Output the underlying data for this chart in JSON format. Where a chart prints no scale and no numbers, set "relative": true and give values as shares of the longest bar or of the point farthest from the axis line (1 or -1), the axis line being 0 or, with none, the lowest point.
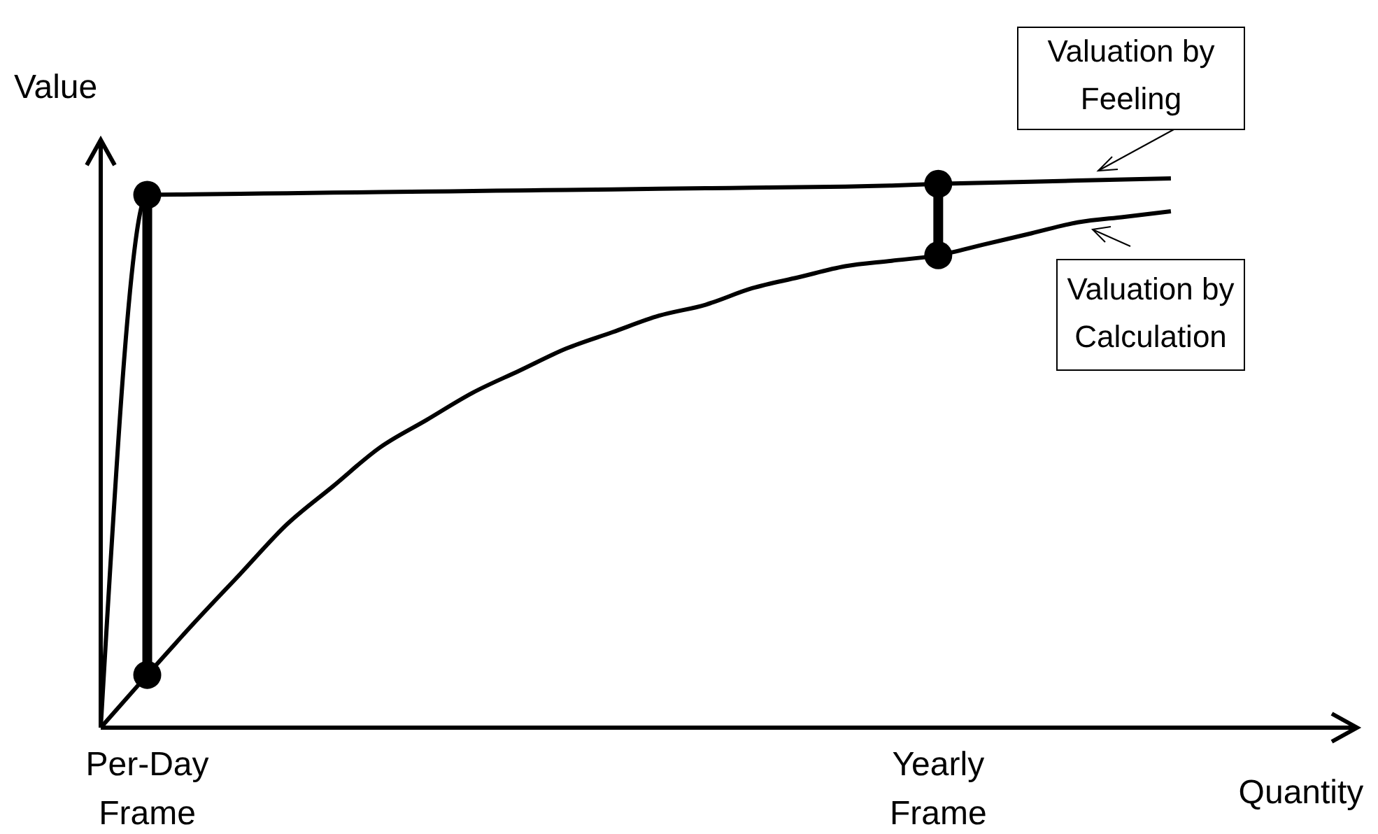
{
  "chart_data": {
    "type": "line",
    "relative": true,
    "xlabel": "Quantity",
    "ylabel": "Value",
    "categories": [
      null,
      "Per-Day Frame",
      null,
      null,
      null,
      null,
      null,
      null,
      null,
      null,
      null,
      null,
      null,
      null,
      null,
      null,
      null,
      null,
      "Yearly Frame",
      null,
      null,
      null,
      null,
      null,
      null,
      null,
      null,
      null
    ],
    "series": [
      {
        "name": "Valuation by Feeling",
        "color": "#000000",
        "values": [
          0,
          0.97,
          0.971,
          0.972,
          0.973,
          0.974,
          0.975,
          0.976,
          0.977,
          0.978,
          0.979,
          0.98,
          0.981,
          0.982,
          0.983,
          0.984,
          0.985,
          0.987,
          0.99,
          0.992,
          0.994,
          0.996,
          0.998,
          1.0,
          null,
          null,
          null,
          null
        ]
      },
      {
        "name": "Valuation by Calculation",
        "color": "#000000",
        "values": [
          0,
          0.096,
          0.19,
          0.28,
          0.37,
          0.44,
          0.51,
          0.56,
          0.61,
          0.65,
          0.69,
          0.72,
          0.75,
          0.77,
          0.8,
          0.82,
          0.84,
          0.85,
          0.86,
          0.88,
          0.9,
          0.92,
          0.93,
          0.94,
          null,
          null,
          null,
          null
        ]
      },
      {
        "type": "scatter",
        "color": "#000000",
        "marker": "circle",
        "values": [
          null,
          0.97,
          null,
          null,
          null,
          null,
          null,
          null,
          null,
          null,
          null,
          null,
          null,
          null,
          null,
          null,
          null,
          null,
          0.99,
          null,
          null,
          null,
          null,
          null,
          null,
          null,
          null,
          null
        ]
      },
      {
        "type": "scatter",
        "color": "#000000",
        "marker": "circle",
        "values": [
          null,
          0.096,
          null,
          null,
          null,
          null,
          null,
          null,
          null,
          null,
          null,
          null,
          null,
          null,
          null,
          null,
          null,
          null,
          0.86,
          null,
          null,
          null,
          null,
          null,
          null,
          null,
          null,
          null
        ]
      }
    ]
  }
}
